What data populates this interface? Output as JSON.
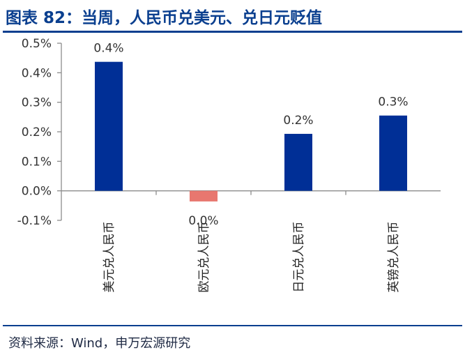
{
  "header": {
    "title": "图表 82：当周，人民币兑美元、兑日元贬值"
  },
  "footer": {
    "source": "资料来源：Wind，申万宏源研究"
  },
  "chart_data": {
    "type": "bar",
    "categories": [
      "美元兑人民币",
      "欧元兑人民币",
      "日元兑人民币",
      "英镑兑人民币"
    ],
    "values": [
      0.437,
      -0.036,
      0.193,
      0.255
    ],
    "data_labels": [
      "0.4%",
      "0.0%",
      "0.2%",
      "0.3%"
    ],
    "ylim": [
      -0.1,
      0.5
    ],
    "yticks": [
      -0.1,
      0.0,
      0.1,
      0.2,
      0.3,
      0.4,
      0.5
    ],
    "ytick_labels": [
      "-0.1%",
      "0.0%",
      "0.1%",
      "0.2%",
      "0.3%",
      "0.4%",
      "0.5%"
    ],
    "colors": {
      "positive": "#002f96",
      "negative": "#e8776f",
      "axis": "#8c8c8c"
    },
    "grid": false,
    "legend": "none"
  }
}
